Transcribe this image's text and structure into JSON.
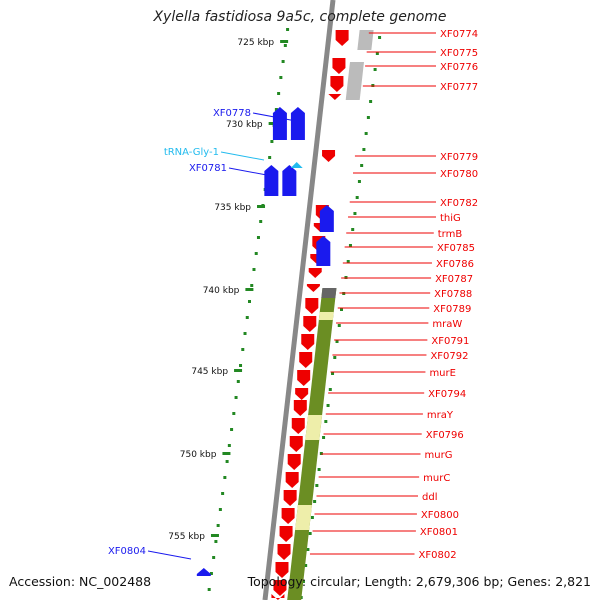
{
  "map": {
    "title": "Xylella fastidiosa 9a5c, complete genome",
    "accession": "Accession: NC_002488",
    "topology": "Topology: circular; Length: 2,679,306 bp; Genes: 2,821",
    "scale_ticks": [
      {
        "label": "725 kbp",
        "kbp": 725
      },
      {
        "label": "730 kbp",
        "kbp": 730
      },
      {
        "label": "735 kbp",
        "kbp": 735
      },
      {
        "label": "740 kbp",
        "kbp": 740
      },
      {
        "label": "745 kbp",
        "kbp": 745
      },
      {
        "label": "750 kbp",
        "kbp": 750
      },
      {
        "label": "755 kbp",
        "kbp": 755
      }
    ],
    "colors": {
      "forward_cds": "#ee0000",
      "reverse_cds": "#1a1aee",
      "trna": "#22bbee",
      "operon_band": "#6b8e23",
      "operon_light": "#eeeeaa",
      "gray_band": "#bbbbbb",
      "scale_tick": "#228822"
    },
    "right_labels": [
      "XF0774",
      "XF0775",
      "XF0776",
      "XF0777",
      "XF0779",
      "XF0780",
      "XF0782",
      "thiG",
      "trmB",
      "XF0785",
      "XF0786",
      "XF0787",
      "XF0788",
      "XF0789",
      "mraW",
      "XF0791",
      "XF0792",
      "murE",
      "XF0794",
      "mraY",
      "XF0796",
      "murG",
      "murC",
      "ddl",
      "XF0800",
      "XF0801",
      "XF0802"
    ],
    "left_labels": [
      {
        "text": "XF0778",
        "kind": "reverse_cds"
      },
      {
        "text": "tRNA-Gly-1",
        "kind": "trna"
      },
      {
        "text": "XF0781",
        "kind": "reverse_cds"
      },
      {
        "text": "XF0804",
        "kind": "reverse_cds"
      }
    ]
  }
}
